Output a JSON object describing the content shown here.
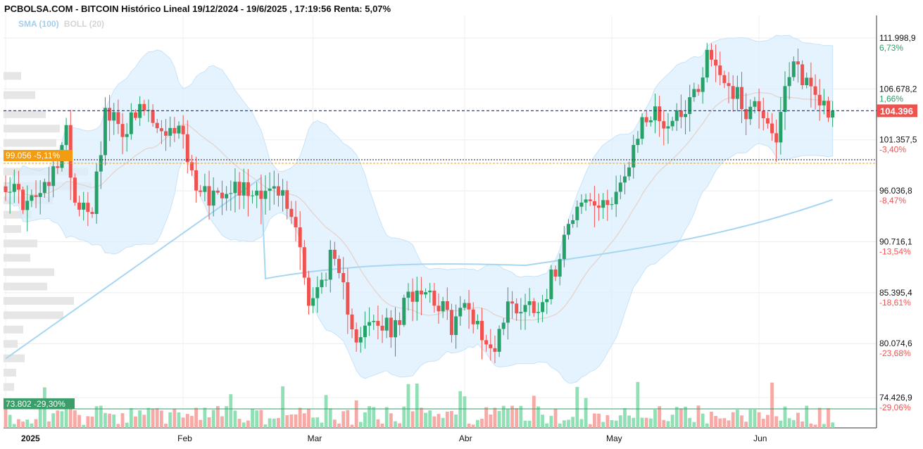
{
  "header": {
    "title": "PCBOLSA.COM - BITCOIN Histórico Lineal 19/12/2024 - 19/6/2025 , 17:19:56 Renta: 5,07%"
  },
  "indicators": {
    "sma": "SMA (100)",
    "boll": "BOLL (20)"
  },
  "colors": {
    "up": "#26a269",
    "down": "#ef5350",
    "sma": "#a7d6f2",
    "band_fill": "#dcefff",
    "band_mid": "#e8d8d0",
    "last_line": "#1f3fd6",
    "ref_black": "#222222",
    "ref_orange": "#f39c12",
    "ref_green": "#3a9d6a"
  },
  "chart_data": {
    "type": "candlestick",
    "title": "PCBOLSA.COM - BITCOIN Histórico Lineal 19/12/2024 - 19/6/2025 , 17:19:56 Renta: 5,07%",
    "ylim": [
      74426.9,
      111998.9
    ],
    "y_ticks": [
      {
        "label": "111.998,9",
        "value": 111998.9,
        "pct": "6,73%",
        "sign": "pos"
      },
      {
        "label": "106.678,2",
        "value": 106678.2,
        "pct": "1,66%",
        "sign": "pos"
      },
      {
        "label": "101.357,5",
        "value": 101357.5,
        "pct": "-3,40%",
        "sign": "neg"
      },
      {
        "label": "96.036,8",
        "value": 96036.8,
        "pct": "-8,47%",
        "sign": "neg"
      },
      {
        "label": "90.716,1",
        "value": 90716.1,
        "pct": "-13,54%",
        "sign": "neg"
      },
      {
        "label": "85.395,4",
        "value": 85395.4,
        "pct": "-18,61%",
        "sign": "neg"
      },
      {
        "label": "80.074,6",
        "value": 80074.6,
        "pct": "-23,68%",
        "sign": "neg"
      },
      {
        "label": "74.426,9",
        "value": 74426.9,
        "pct": "-29,06%",
        "sign": "neg"
      }
    ],
    "x_labels": [
      {
        "label": "2025",
        "bar": 0
      },
      {
        "label": "Feb",
        "bar": 41
      },
      {
        "label": "Mar",
        "bar": 71
      },
      {
        "label": "Abr",
        "bar": 106
      },
      {
        "label": "May",
        "bar": 140
      },
      {
        "label": "Jun",
        "bar": 174
      }
    ],
    "last_price": {
      "label": "104.396",
      "value": 104396
    },
    "ref_lines": [
      {
        "label": "99.056 -5,11%",
        "value": 99056,
        "kind": "orange"
      },
      {
        "label": "73.802 -29,30%",
        "value": 73802,
        "kind": "green"
      }
    ],
    "anchors": [
      [
        0,
        97000
      ],
      [
        5,
        94500
      ],
      [
        10,
        96500
      ],
      [
        14,
        102000
      ],
      [
        16,
        95000
      ],
      [
        20,
        94500
      ],
      [
        23,
        104000
      ],
      [
        27,
        102500
      ],
      [
        32,
        104500
      ],
      [
        37,
        101000
      ],
      [
        40,
        103500
      ],
      [
        43,
        97500
      ],
      [
        47,
        95500
      ],
      [
        52,
        96800
      ],
      [
        56,
        96000
      ],
      [
        60,
        96300
      ],
      [
        64,
        95500
      ],
      [
        68,
        91000
      ],
      [
        70,
        84000
      ],
      [
        72,
        85500
      ],
      [
        75,
        89000
      ],
      [
        78,
        85500
      ],
      [
        81,
        81000
      ],
      [
        85,
        82000
      ],
      [
        90,
        81500
      ],
      [
        93,
        85000
      ],
      [
        96,
        86300
      ],
      [
        99,
        85000
      ],
      [
        103,
        82000
      ],
      [
        106,
        84000
      ],
      [
        109,
        82500
      ],
      [
        111,
        79500
      ],
      [
        113,
        80000
      ],
      [
        116,
        84000
      ],
      [
        120,
        84000
      ],
      [
        124,
        84500
      ],
      [
        127,
        88000
      ],
      [
        130,
        93500
      ],
      [
        134,
        95000
      ],
      [
        138,
        94000
      ],
      [
        141,
        96500
      ],
      [
        144,
        98000
      ],
      [
        147,
        103500
      ],
      [
        150,
        104000
      ],
      [
        153,
        103000
      ],
      [
        157,
        105000
      ],
      [
        160,
        107000
      ],
      [
        162,
        110500
      ],
      [
        165,
        108500
      ],
      [
        168,
        106500
      ],
      [
        171,
        104500
      ],
      [
        174,
        105000
      ],
      [
        176,
        103500
      ],
      [
        178,
        101500
      ],
      [
        180,
        106000
      ],
      [
        182,
        109000
      ],
      [
        185,
        107500
      ],
      [
        188,
        105500
      ],
      [
        191,
        104400
      ]
    ],
    "vol_profile": [
      {
        "price": 108000,
        "w": 25
      },
      {
        "price": 106000,
        "w": 45
      },
      {
        "price": 104000,
        "w": 60
      },
      {
        "price": 102500,
        "w": 80
      },
      {
        "price": 101000,
        "w": 75
      },
      {
        "price": 99500,
        "w": 98
      },
      {
        "price": 98000,
        "w": 120
      },
      {
        "price": 96500,
        "w": 125
      },
      {
        "price": 95000,
        "w": 70
      },
      {
        "price": 93500,
        "w": 40
      },
      {
        "price": 92000,
        "w": 25
      },
      {
        "price": 90500,
        "w": 48
      },
      {
        "price": 89000,
        "w": 38
      },
      {
        "price": 87500,
        "w": 72
      },
      {
        "price": 86000,
        "w": 62
      },
      {
        "price": 84500,
        "w": 100
      },
      {
        "price": 83000,
        "w": 85
      },
      {
        "price": 81500,
        "w": 28
      },
      {
        "price": 80000,
        "w": 20
      },
      {
        "price": 78500,
        "w": 30
      },
      {
        "price": 77000,
        "w": 18
      },
      {
        "price": 75500,
        "w": 15
      }
    ]
  }
}
